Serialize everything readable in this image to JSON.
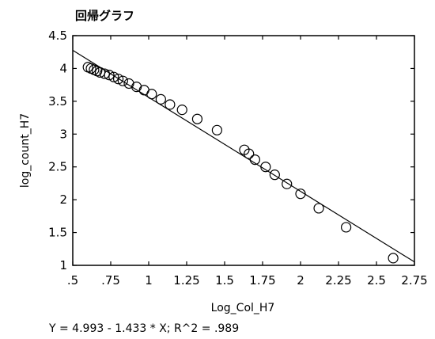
{
  "chart_data": {
    "type": "scatter",
    "title": "回帰グラフ",
    "xlabel": "Log_Col_H7",
    "ylabel": "log_count_H7",
    "xlim": [
      0.5,
      2.75
    ],
    "ylim": [
      1,
      4.5
    ],
    "x_ticks": [
      ".5",
      ".75",
      "1",
      "1.25",
      "1.5",
      "1.75",
      "2",
      "2.25",
      "2.5",
      "2.75"
    ],
    "y_ticks": [
      "1",
      "1.5",
      "2",
      "2.5",
      "3",
      "3.5",
      "4",
      "4.5"
    ],
    "x_tick_values": [
      0.5,
      0.75,
      1,
      1.25,
      1.5,
      1.75,
      2,
      2.25,
      2.5,
      2.75
    ],
    "y_tick_values": [
      1,
      1.5,
      2,
      2.5,
      3,
      3.5,
      4,
      4.5
    ],
    "grid": false,
    "series": [
      {
        "points": [
          [
            0.6,
            4.02
          ],
          [
            0.62,
            4.0
          ],
          [
            0.64,
            3.98
          ],
          [
            0.66,
            3.96
          ],
          [
            0.68,
            3.94
          ],
          [
            0.71,
            3.92
          ],
          [
            0.74,
            3.9
          ],
          [
            0.77,
            3.87
          ],
          [
            0.8,
            3.84
          ],
          [
            0.83,
            3.81
          ],
          [
            0.87,
            3.77
          ],
          [
            0.92,
            3.72
          ],
          [
            0.97,
            3.67
          ],
          [
            1.02,
            3.61
          ],
          [
            1.08,
            3.53
          ],
          [
            1.14,
            3.45
          ],
          [
            1.22,
            3.37
          ],
          [
            1.32,
            3.23
          ],
          [
            1.45,
            3.06
          ],
          [
            1.63,
            2.76
          ],
          [
            1.66,
            2.7
          ],
          [
            1.7,
            2.61
          ],
          [
            1.77,
            2.5
          ],
          [
            1.83,
            2.38
          ],
          [
            1.91,
            2.24
          ],
          [
            2.0,
            2.09
          ],
          [
            2.12,
            1.87
          ],
          [
            2.3,
            1.58
          ],
          [
            2.61,
            1.11
          ]
        ]
      }
    ],
    "fit_line": {
      "intercept": 4.993,
      "slope": -1.433
    },
    "equation": "Y = 4.993 - 1.433 * X; R^2 = .989"
  }
}
